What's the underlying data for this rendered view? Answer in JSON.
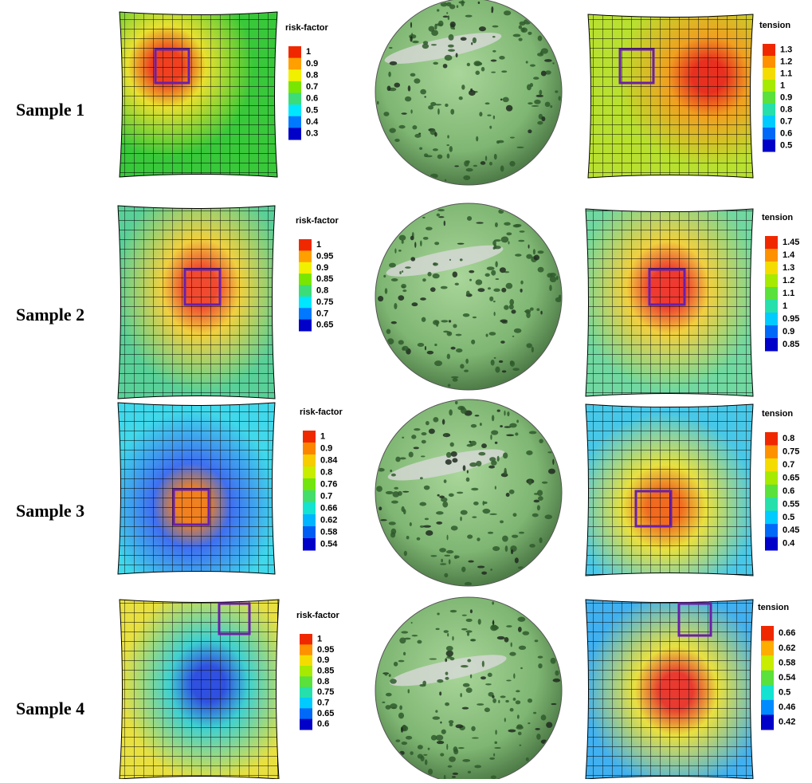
{
  "rows": [
    {
      "label": "Sample 1",
      "risk_legend": {
        "title": "risk-factor",
        "ticks": [
          1,
          0.9,
          0.8,
          0.7,
          0.6,
          0.5,
          0.4,
          0.3
        ]
      },
      "tension_legend": {
        "title": "tension",
        "ticks": [
          1.3,
          1.2,
          1.1,
          1,
          0.9,
          0.8,
          0.7,
          0.6,
          0.5
        ]
      }
    },
    {
      "label": "Sample 2",
      "risk_legend": {
        "title": "risk-factor",
        "ticks": [
          1,
          0.95,
          0.9,
          0.85,
          0.8,
          0.75,
          0.7,
          0.65
        ]
      },
      "tension_legend": {
        "title": "tension",
        "ticks": [
          1.45,
          1.4,
          1.3,
          1.2,
          1.1,
          1,
          0.95,
          0.9,
          0.85
        ]
      }
    },
    {
      "label": "Sample 3",
      "risk_legend": {
        "title": "risk-factor",
        "ticks": [
          1,
          0.9,
          0.84,
          0.8,
          0.76,
          0.7,
          0.66,
          0.62,
          0.58,
          0.54
        ]
      },
      "tension_legend": {
        "title": "tension",
        "ticks": [
          0.8,
          0.75,
          0.7,
          0.65,
          0.6,
          0.55,
          0.5,
          0.45,
          0.4
        ]
      }
    },
    {
      "label": "Sample 4",
      "risk_legend": {
        "title": "risk-factor",
        "ticks": [
          1,
          0.95,
          0.9,
          0.85,
          0.8,
          0.75,
          0.7,
          0.65,
          0.6
        ]
      },
      "tension_legend": {
        "title": "tension",
        "ticks": [
          0.66,
          0.62,
          0.58,
          0.54,
          0.5,
          0.46,
          0.42
        ]
      }
    }
  ]
}
